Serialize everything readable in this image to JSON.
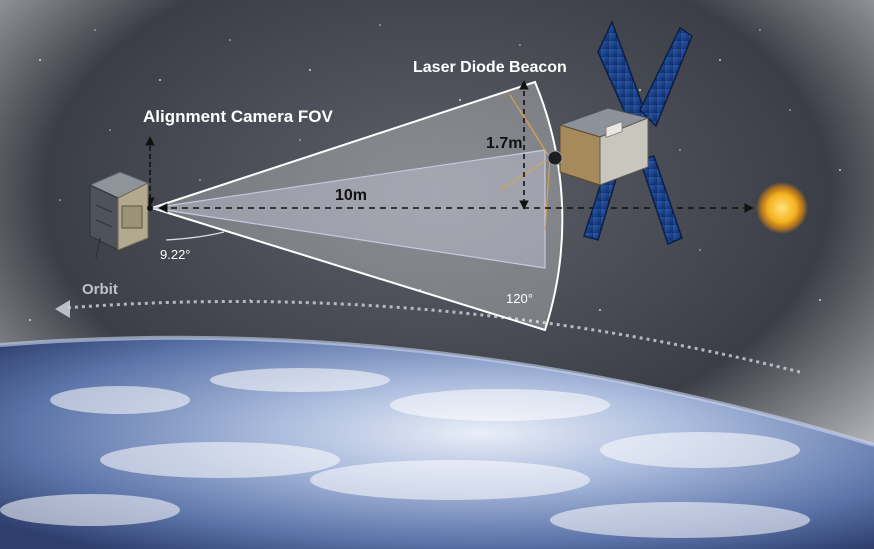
{
  "labels": {
    "camera_fov": "Alignment Camera FOV",
    "laser_beacon": "Laser Diode Beacon",
    "distance": "10m",
    "height": "1.7m",
    "camera_angle": "9.22°",
    "beacon_angle": "120°",
    "orbit": "Orbit"
  },
  "colors": {
    "space": "#3a3d45",
    "earth_ocean": "#5a78b4",
    "atmosphere": "#9fb8e0",
    "sun": "#f5b21c",
    "panel_blue": "#1d4d9b",
    "orbit_arrow": "#c8ccd4"
  },
  "icons": {
    "chaser": "cubesat-chaser-icon",
    "target": "cubesat-target-icon",
    "sun": "sun-icon"
  }
}
